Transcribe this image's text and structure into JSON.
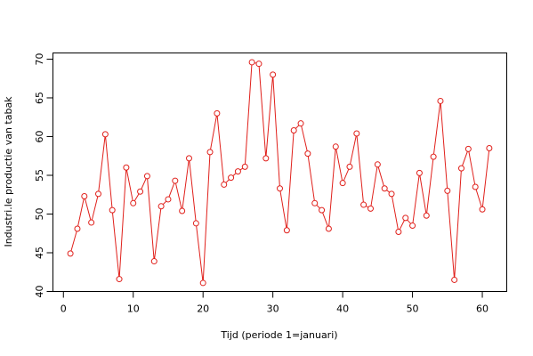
{
  "chart_data": {
    "type": "line",
    "xlabel": "Tijd (periode 1=januari)",
    "ylabel": "Industri.le productie van tabak",
    "xlim": [
      -1.5,
      63.5
    ],
    "ylim": [
      40,
      70.8
    ],
    "xticks": [
      0,
      10,
      20,
      30,
      40,
      50,
      60
    ],
    "yticks": [
      40,
      45,
      50,
      55,
      60,
      65,
      70
    ],
    "grid": false,
    "series_color": "#e0201b",
    "marker": "open-circle",
    "x": [
      1,
      2,
      3,
      4,
      5,
      6,
      7,
      8,
      9,
      10,
      11,
      12,
      13,
      14,
      15,
      16,
      17,
      18,
      19,
      20,
      21,
      22,
      23,
      24,
      25,
      26,
      27,
      28,
      29,
      30,
      31,
      32,
      33,
      34,
      35,
      36,
      37,
      38,
      39,
      40,
      41,
      42,
      43,
      44,
      45,
      46,
      47,
      48,
      49,
      50,
      51,
      52,
      53,
      54,
      55,
      56,
      57,
      58,
      59,
      60,
      61
    ],
    "y": [
      44.9,
      48.1,
      52.3,
      48.9,
      52.6,
      60.3,
      50.5,
      41.6,
      56.0,
      51.4,
      52.9,
      54.9,
      43.9,
      51.0,
      51.9,
      54.3,
      50.4,
      57.2,
      48.8,
      41.1,
      58.0,
      63.0,
      53.8,
      54.7,
      55.5,
      56.1,
      69.6,
      69.4,
      57.2,
      68.0,
      53.3,
      47.9,
      60.8,
      61.7,
      57.8,
      51.4,
      50.5,
      48.1,
      58.7,
      54.0,
      56.1,
      60.4,
      51.2,
      50.7,
      56.4,
      53.3,
      52.6,
      47.7,
      49.5,
      48.5,
      55.3,
      49.8,
      57.4,
      64.6,
      53.0,
      41.5,
      55.9,
      58.4,
      53.5,
      50.6,
      58.5
    ]
  }
}
